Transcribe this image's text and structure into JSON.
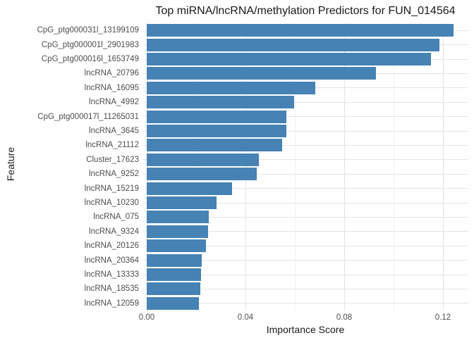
{
  "chart_data": {
    "type": "bar",
    "orientation": "horizontal",
    "title": "Top miRNA/lncRNA/methylation Predictors for FUN_014564",
    "xlabel": "Importance Score",
    "ylabel": "Feature",
    "categories": [
      "CpG_ptg000031l_13199109",
      "CpG_ptg000001l_2901983",
      "CpG_ptg000016l_1653749",
      "lncRNA_20796",
      "lncRNA_16095",
      "lncRNA_4992",
      "CpG_ptg000017l_11265031",
      "lncRNA_3645",
      "lncRNA_21112",
      "Cluster_17623",
      "lncRNA_9252",
      "lncRNA_15219",
      "lncRNA_10230",
      "lncRNA_075",
      "lncRNA_9324",
      "lncRNA_20126",
      "lncRNA_20364",
      "lncRNA_13333",
      "lncRNA_18535",
      "lncRNA_12059"
    ],
    "values": [
      0.1243,
      0.1186,
      0.1151,
      0.0929,
      0.0683,
      0.0597,
      0.0567,
      0.0565,
      0.0549,
      0.0454,
      0.0445,
      0.0346,
      0.0283,
      0.0252,
      0.0249,
      0.024,
      0.0223,
      0.022,
      0.0217,
      0.0211
    ],
    "x_ticks": [
      {
        "label": "0.00",
        "value": 0.0
      },
      {
        "label": "0.04",
        "value": 0.04
      },
      {
        "label": "0.08",
        "value": 0.08
      },
      {
        "label": "0.12",
        "value": 0.12
      }
    ],
    "x_minor_ticks": [
      0.02,
      0.06,
      0.1
    ],
    "xlim": [
      0,
      0.13
    ],
    "grid": true,
    "legend": "none",
    "colors": {
      "bar": "#4682B4",
      "grid_major": "#E4E4E4",
      "grid_minor": "#F2F2F2",
      "axis_text": "#4D4D4D"
    }
  }
}
